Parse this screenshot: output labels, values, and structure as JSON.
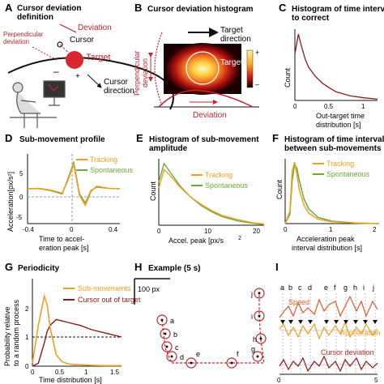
{
  "panels": {
    "A": {
      "label": "A",
      "title_1": "Cursor deviation",
      "title_2": "definition",
      "deviation": "Deviation",
      "perpendicular_1": "Perpendicular",
      "perpendicular_2": "deviation",
      "cursor": "Cursor",
      "target": "Target",
      "minus": "–",
      "plus": "+",
      "cursor_direction_1": "Cursor",
      "cursor_direction_2": "direction"
    },
    "B": {
      "label": "B",
      "title": "Cursor deviation histogram",
      "target_direction_1": "Target",
      "target_direction_2": "direction",
      "target": "Target",
      "ylabel_1": "Perpendicular",
      "ylabel_2": "deviation",
      "xlabel": "Deviation",
      "colorbar_plus": "+",
      "colorbar_minus": "–"
    },
    "C": {
      "label": "C",
      "title_1": "Histogram of time interval",
      "title_2": "to correct",
      "ylabel": "Count",
      "xlabel_1": "Out-target time",
      "xlabel_2": "distribution [s]",
      "ticks": [
        "0",
        "0.5",
        "1"
      ]
    },
    "D": {
      "label": "D",
      "title": "Sub-movement profile",
      "ylabel": "Acceleration[px/s²]",
      "xlabel_1": "Time to accel-",
      "xlabel_2": "eration peak [s]",
      "legend_tracking": "Tracking",
      "legend_spontaneous": "Spontaneous",
      "yticks": [
        "5",
        "0",
        "-5"
      ],
      "xticks": [
        "-0.4",
        "0",
        "0.4"
      ]
    },
    "E": {
      "label": "E",
      "title_1": "Histogram of sub-movement",
      "title_2": "amplitude",
      "ylabel": "Count",
      "xlabel": "Accel. peak [px/s",
      "xlabel_exp": "2",
      "legend_tracking": "Tracking",
      "legend_spontaneous": "Spontaneous",
      "xticks": [
        "0",
        "10",
        "20"
      ]
    },
    "F": {
      "label": "F",
      "title_1": "Histogram of time interval",
      "title_2": "between sub-movements",
      "ylabel": "Count",
      "xlabel_1": "Acceleration peak",
      "xlabel_2": "interval distribution [s]",
      "legend_tracking": "Tracking",
      "legend_spontaneous": "Spontaneous",
      "xticks": [
        "0",
        "1",
        "2"
      ]
    },
    "G": {
      "label": "G",
      "title": "Periodicity",
      "ylabel_1": "Probability relative",
      "ylabel_2": "to a random process",
      "xlabel": "Time distribution [s]",
      "legend_sub": "Sub-movements",
      "legend_cursor": "Cursor out of target",
      "yticks": [
        "2",
        "1",
        "0"
      ],
      "xticks": [
        "0",
        "0.5",
        "1",
        "1.5"
      ]
    },
    "H": {
      "label": "H",
      "title": "Example (5 s)",
      "scalebar": "100 px",
      "letters": [
        "a",
        "b",
        "c",
        "d",
        "e",
        "f",
        "g",
        "h",
        "i",
        "j"
      ]
    },
    "I": {
      "label": "I",
      "letters": [
        "a",
        "b",
        "c",
        "d",
        "e",
        "f",
        "g",
        "h",
        "i",
        "j"
      ],
      "speed": "Speed",
      "acceleration": "Acceleration",
      "cursor_deviation": "Cursor deviation",
      "xticks": [
        "0",
        "5"
      ]
    }
  },
  "colors": {
    "orange": "#f0a020",
    "green": "#6aaa3a",
    "red": "#c0262c",
    "dark_red": "#8b1a1a"
  },
  "chart_data": [
    {
      "type": "line",
      "panel": "C",
      "xlabel": "Out-target time distribution [s]",
      "ylabel": "Count",
      "x": [
        0,
        0.05,
        0.1,
        0.15,
        0.2,
        0.3,
        0.4,
        0.5,
        0.6,
        0.8,
        1.0,
        1.2
      ],
      "series": [
        {
          "values": [
            0.7,
            1.0,
            0.8,
            0.62,
            0.5,
            0.36,
            0.26,
            0.19,
            0.13,
            0.07,
            0.04,
            0.02
          ]
        }
      ]
    },
    {
      "type": "line",
      "panel": "D",
      "xlabel": "Time to acceleration peak [s]",
      "ylabel": "Acceleration[px/s²]",
      "ylim": [
        -8,
        8
      ],
      "x": [
        -0.4,
        -0.3,
        -0.2,
        -0.1,
        -0.05,
        0,
        0.05,
        0.1,
        0.15,
        0.2,
        0.3,
        0.4
      ],
      "series": [
        {
          "name": "Tracking",
          "values": [
            0,
            0.1,
            -0.3,
            -1.0,
            2.0,
            5.6,
            -1.5,
            -3.8,
            -0.6,
            0.6,
            0.1,
            0
          ]
        },
        {
          "name": "Spontaneous",
          "values": [
            0,
            0.05,
            -0.4,
            -1.2,
            2.3,
            6.0,
            -1.2,
            -3.3,
            -0.4,
            0.4,
            0.1,
            0
          ]
        }
      ]
    },
    {
      "type": "line",
      "panel": "E",
      "xlabel": "Accel. peak [px/s2]",
      "ylabel": "Count",
      "x": [
        0,
        1,
        2,
        3,
        4,
        6,
        8,
        10,
        12,
        15,
        18,
        20
      ],
      "series": [
        {
          "name": "Tracking",
          "values": [
            0.6,
            0.9,
            0.82,
            0.72,
            0.62,
            0.46,
            0.34,
            0.24,
            0.16,
            0.09,
            0.04,
            0.02
          ]
        },
        {
          "name": "Spontaneous",
          "values": [
            0.7,
            1.0,
            0.88,
            0.76,
            0.64,
            0.46,
            0.32,
            0.22,
            0.14,
            0.07,
            0.03,
            0.01
          ]
        }
      ]
    },
    {
      "type": "line",
      "panel": "F",
      "xlabel": "Acceleration peak interval distribution [s]",
      "ylabel": "Count",
      "x": [
        0,
        0.1,
        0.15,
        0.2,
        0.25,
        0.3,
        0.4,
        0.5,
        0.7,
        1.0,
        1.5,
        2.0
      ],
      "series": [
        {
          "name": "Tracking",
          "values": [
            0,
            0.2,
            0.85,
            1.0,
            0.8,
            0.55,
            0.3,
            0.17,
            0.07,
            0.03,
            0.01,
            0
          ]
        },
        {
          "name": "Spontaneous",
          "values": [
            0,
            0.15,
            0.7,
            0.95,
            0.9,
            0.7,
            0.4,
            0.24,
            0.1,
            0.04,
            0.01,
            0
          ]
        }
      ]
    },
    {
      "type": "line",
      "panel": "G",
      "xlabel": "Time distribution [s]",
      "ylabel": "Probability relative to a random process",
      "ylim": [
        0,
        2.5
      ],
      "xlim": [
        0,
        1.5
      ],
      "x": [
        0,
        0.1,
        0.2,
        0.25,
        0.3,
        0.4,
        0.5,
        0.6,
        0.7,
        0.8,
        1.0,
        1.2,
        1.4,
        1.5
      ],
      "series": [
        {
          "name": "Sub-movements",
          "values": [
            0.1,
            1.4,
            2.4,
            2.1,
            1.3,
            0.4,
            0.15,
            0.08,
            0.05,
            0.05,
            0.03,
            0.02,
            0.02,
            0.02
          ]
        },
        {
          "name": "Cursor out of target",
          "values": [
            0.0,
            0.1,
            0.8,
            1.2,
            1.4,
            1.6,
            1.55,
            1.5,
            1.45,
            1.4,
            1.25,
            1.15,
            1.05,
            1.0
          ]
        }
      ]
    }
  ]
}
